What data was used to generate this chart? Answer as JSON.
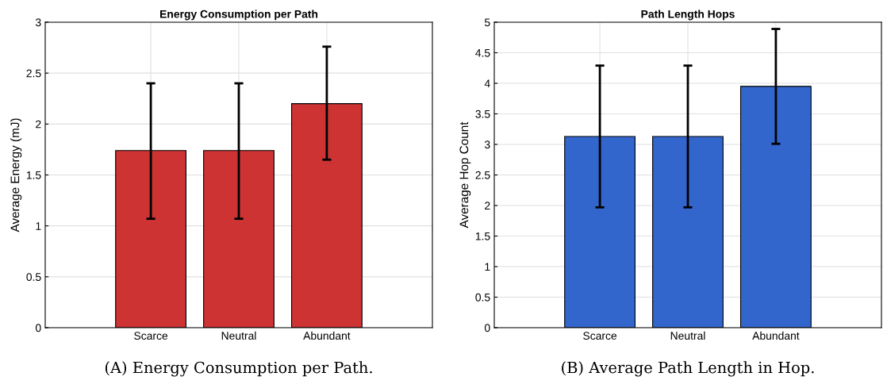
{
  "chart_data": [
    {
      "type": "bar",
      "title": "Energy Consumption per Path",
      "ylabel": "Average Energy (mJ)",
      "categories": [
        "Scarce",
        "Neutral",
        "Abundant"
      ],
      "series": [
        {
          "color": "#cd3333",
          "values": [
            1.74,
            1.74,
            2.2
          ],
          "errors": [
            [
              1.07,
              2.4
            ],
            [
              1.07,
              2.4
            ],
            [
              1.65,
              2.76
            ]
          ]
        }
      ],
      "ylim": [
        0,
        3
      ],
      "yticks": [
        0,
        0.5,
        1,
        1.5,
        2,
        2.5,
        3
      ],
      "grid": true,
      "annotations": [
        "(A) Energy Consumption per Path."
      ]
    },
    {
      "type": "bar",
      "title": "Path Length Hops",
      "ylabel": "Average Hop Count",
      "categories": [
        "Scarce",
        "Neutral",
        "Abundant"
      ],
      "series": [
        {
          "color": "#3366cc",
          "values": [
            3.13,
            3.13,
            3.95
          ],
          "errors": [
            [
              1.97,
              4.29
            ],
            [
              1.97,
              4.29
            ],
            [
              3.01,
              4.89
            ]
          ]
        }
      ],
      "ylim": [
        0,
        5
      ],
      "yticks": [
        0,
        0.5,
        1,
        1.5,
        2,
        2.5,
        3,
        3.5,
        4,
        4.5,
        5
      ],
      "grid": true,
      "annotations": [
        "(B) Average Path Length in Hop."
      ]
    }
  ]
}
